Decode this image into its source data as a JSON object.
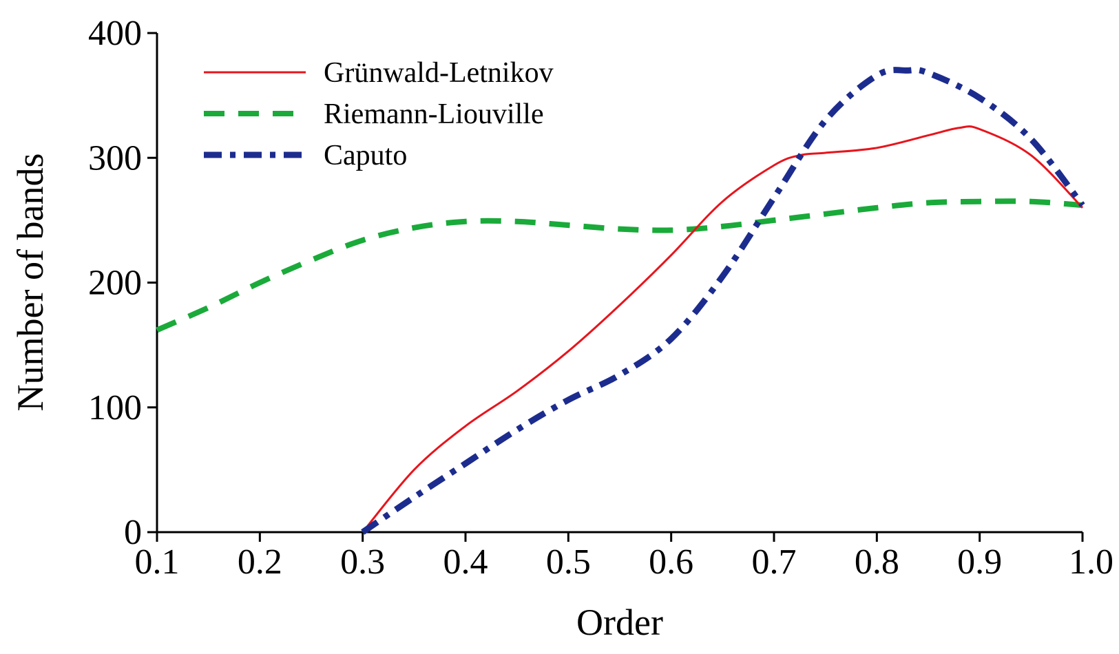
{
  "chart_data": {
    "type": "line",
    "xlabel": "Order",
    "ylabel": "Number of bands",
    "xlim": [
      0.1,
      1.0
    ],
    "ylim": [
      0,
      400
    ],
    "x_ticks": [
      "0.1",
      "0.2",
      "0.3",
      "0.4",
      "0.5",
      "0.6",
      "0.7",
      "0.8",
      "0.9",
      "1.0"
    ],
    "y_ticks": [
      "0",
      "100",
      "200",
      "300",
      "400"
    ],
    "grid": false,
    "legend_position": "top-left",
    "series": [
      {
        "name": "Grünwald-Letnikov",
        "color": "#e8141c",
        "style": "solid",
        "x": [
          0.3,
          0.35,
          0.4,
          0.45,
          0.5,
          0.55,
          0.6,
          0.65,
          0.7,
          0.725,
          0.75,
          0.8,
          0.85,
          0.88,
          0.9,
          0.95,
          1.0
        ],
        "y": [
          0,
          50,
          85,
          113,
          145,
          182,
          222,
          265,
          294,
          302,
          304,
          308,
          318,
          324,
          323,
          302,
          260
        ]
      },
      {
        "name": "Riemann-Liouville",
        "color": "#1aaa3a",
        "style": "dashed",
        "x": [
          0.1,
          0.15,
          0.2,
          0.25,
          0.3,
          0.35,
          0.4,
          0.45,
          0.5,
          0.55,
          0.6,
          0.65,
          0.7,
          0.75,
          0.8,
          0.85,
          0.9,
          0.95,
          1.0
        ],
        "y": [
          162,
          180,
          200,
          218,
          234,
          244,
          249,
          249,
          246,
          243,
          242,
          245,
          250,
          255,
          260,
          264,
          265,
          265,
          262
        ]
      },
      {
        "name": "Caputo",
        "color": "#1c2c8e",
        "style": "dashdot",
        "x": [
          0.3,
          0.35,
          0.4,
          0.45,
          0.5,
          0.55,
          0.6,
          0.65,
          0.7,
          0.75,
          0.8,
          0.83,
          0.85,
          0.9,
          0.95,
          1.0
        ],
        "y": [
          0,
          28,
          55,
          82,
          106,
          126,
          155,
          205,
          268,
          330,
          366,
          370,
          368,
          348,
          315,
          262
        ]
      }
    ]
  }
}
